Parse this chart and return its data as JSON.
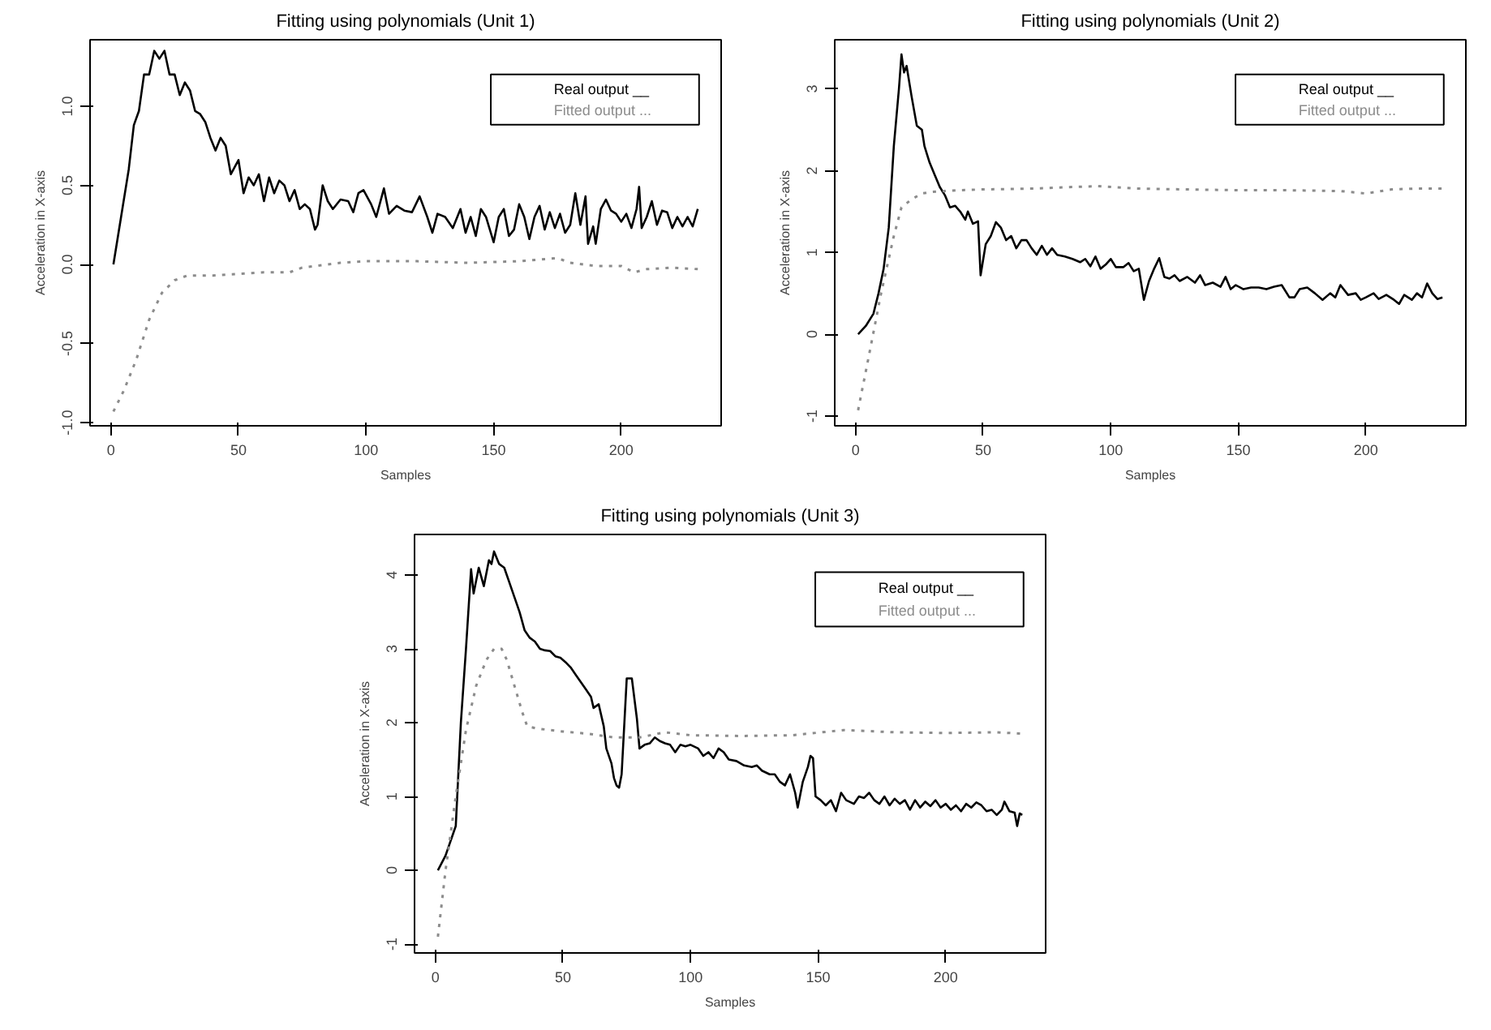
{
  "chart_data": [
    {
      "type": "line",
      "title": "Fitting using polynomials (Unit 1)",
      "xlabel": "Samples",
      "ylabel": "Acceleration in X-axis",
      "legend": "top right",
      "xlim": [
        -8.16,
        239.16
      ],
      "xticks": [
        0,
        50,
        100,
        150,
        200
      ],
      "ylim": [
        -1.02,
        1.42
      ],
      "yticks": [
        {
          "value": -1,
          "label": "-1.0"
        },
        -0.5,
        {
          "value": 0,
          "label": "0.0"
        },
        0.5,
        {
          "value": 1,
          "label": "1.0"
        }
      ],
      "series": [
        {
          "name": "Real output __",
          "color": "#000000",
          "line_style": "solid",
          "x": [
            1,
            4,
            7,
            9,
            11,
            13,
            15,
            17,
            19,
            21,
            23,
            25,
            27,
            29,
            31,
            33,
            35,
            37,
            39,
            41,
            43,
            45,
            47,
            50,
            52,
            54,
            56,
            58,
            60,
            62,
            64,
            66,
            68,
            70,
            72,
            74,
            76,
            78,
            80,
            81,
            83,
            85,
            87,
            90,
            93,
            95,
            97,
            99,
            102,
            104,
            107,
            109,
            112,
            115,
            118,
            121,
            124,
            126,
            128,
            131,
            134,
            137,
            139,
            141,
            143,
            145,
            147,
            150,
            152,
            154,
            156,
            158,
            160,
            162,
            164,
            166,
            168,
            170,
            172,
            174,
            176,
            178,
            180,
            182,
            184,
            186,
            187,
            189,
            190,
            192,
            194,
            196,
            198,
            200,
            202,
            204,
            206,
            207,
            208,
            210,
            212,
            214,
            216,
            218,
            220,
            222,
            224,
            226,
            228,
            230
          ],
          "values": [
            0,
            0.3,
            0.6,
            0.88,
            0.97,
            1.2,
            1.2,
            1.35,
            1.3,
            1.35,
            1.2,
            1.2,
            1.07,
            1.15,
            1.1,
            0.97,
            0.95,
            0.9,
            0.8,
            0.72,
            0.8,
            0.75,
            0.57,
            0.66,
            0.45,
            0.55,
            0.5,
            0.57,
            0.4,
            0.55,
            0.45,
            0.53,
            0.5,
            0.4,
            0.47,
            0.35,
            0.38,
            0.35,
            0.22,
            0.25,
            0.5,
            0.4,
            0.35,
            0.41,
            0.4,
            0.33,
            0.45,
            0.47,
            0.38,
            0.3,
            0.48,
            0.32,
            0.37,
            0.34,
            0.33,
            0.43,
            0.3,
            0.2,
            0.32,
            0.3,
            0.23,
            0.35,
            0.2,
            0.3,
            0.18,
            0.35,
            0.3,
            0.14,
            0.3,
            0.35,
            0.18,
            0.22,
            0.38,
            0.3,
            0.16,
            0.3,
            0.37,
            0.22,
            0.33,
            0.23,
            0.32,
            0.2,
            0.25,
            0.45,
            0.25,
            0.43,
            0.13,
            0.24,
            0.13,
            0.35,
            0.41,
            0.34,
            0.32,
            0.27,
            0.32,
            0.23,
            0.35,
            0.49,
            0.23,
            0.3,
            0.4,
            0.25,
            0.34,
            0.33,
            0.23,
            0.3,
            0.24,
            0.3,
            0.24,
            0.35
          ]
        },
        {
          "name": "Fitted output ...",
          "color": "#8c8c8c",
          "line_style": "dotted",
          "x": [
            1,
            5,
            10,
            15,
            20,
            25,
            30,
            40,
            50,
            60,
            70,
            75,
            80,
            90,
            100,
            120,
            140,
            160,
            175,
            180,
            190,
            200,
            205,
            210,
            220,
            230
          ],
          "values": [
            -0.93,
            -0.8,
            -0.6,
            -0.35,
            -0.18,
            -0.1,
            -0.07,
            -0.07,
            -0.06,
            -0.05,
            -0.05,
            -0.02,
            -0.01,
            0.01,
            0.02,
            0.02,
            0.01,
            0.02,
            0.04,
            0.01,
            -0.01,
            -0.01,
            -0.05,
            -0.03,
            -0.02,
            -0.03
          ]
        }
      ]
    },
    {
      "type": "line",
      "title": "Fitting using polynomials (Unit 2)",
      "xlabel": "Samples",
      "ylabel": "Acceleration in X-axis",
      "legend": "top right",
      "xlim": [
        -8.16,
        239.16
      ],
      "xticks": [
        0,
        50,
        100,
        150,
        200
      ],
      "ylim": [
        -1.12,
        3.6
      ],
      "yticks": [
        -1,
        0,
        1,
        2,
        3
      ],
      "series": [
        {
          "name": "Real output __",
          "color": "#000000",
          "line_style": "solid",
          "x": [
            1,
            4,
            7,
            9,
            11,
            13,
            15,
            17,
            18,
            19,
            20,
            22,
            24,
            26,
            27,
            29,
            31,
            33,
            35,
            37,
            39,
            41,
            43,
            44,
            46,
            48,
            49,
            51,
            53,
            55,
            57,
            59,
            61,
            63,
            65,
            67,
            69,
            71,
            73,
            75,
            77,
            79,
            82,
            85,
            88,
            90,
            92,
            94,
            96,
            98,
            100,
            102,
            105,
            107,
            109,
            111,
            113,
            115,
            117,
            119,
            121,
            123,
            125,
            127,
            130,
            133,
            135,
            137,
            140,
            143,
            145,
            147,
            149,
            152,
            155,
            158,
            161,
            164,
            167,
            170,
            172,
            174,
            177,
            180,
            183,
            186,
            188,
            190,
            193,
            196,
            198,
            200,
            203,
            205,
            208,
            211,
            213,
            215,
            218,
            220,
            222,
            224,
            226,
            228,
            230
          ],
          "values": [
            0,
            0.1,
            0.25,
            0.5,
            0.8,
            1.3,
            2.3,
            3.0,
            3.42,
            3.2,
            3.28,
            2.9,
            2.55,
            2.5,
            2.3,
            2.1,
            1.95,
            1.8,
            1.7,
            1.55,
            1.57,
            1.5,
            1.4,
            1.5,
            1.35,
            1.38,
            0.72,
            1.1,
            1.2,
            1.37,
            1.3,
            1.15,
            1.2,
            1.05,
            1.15,
            1.15,
            1.05,
            0.97,
            1.08,
            0.97,
            1.05,
            0.97,
            0.95,
            0.92,
            0.88,
            0.92,
            0.83,
            0.95,
            0.8,
            0.85,
            0.92,
            0.82,
            0.82,
            0.87,
            0.77,
            0.8,
            0.42,
            0.65,
            0.8,
            0.93,
            0.7,
            0.68,
            0.72,
            0.65,
            0.7,
            0.63,
            0.72,
            0.6,
            0.63,
            0.58,
            0.7,
            0.55,
            0.6,
            0.55,
            0.57,
            0.57,
            0.55,
            0.58,
            0.6,
            0.45,
            0.45,
            0.55,
            0.57,
            0.5,
            0.42,
            0.5,
            0.45,
            0.6,
            0.48,
            0.5,
            0.42,
            0.45,
            0.5,
            0.43,
            0.48,
            0.42,
            0.37,
            0.48,
            0.42,
            0.5,
            0.45,
            0.62,
            0.5,
            0.43,
            0.45
          ]
        },
        {
          "name": "Fitted output ...",
          "color": "#8c8c8c",
          "line_style": "dotted",
          "x": [
            1,
            5,
            10,
            15,
            18,
            22,
            26,
            30,
            40,
            50,
            70,
            85,
            95,
            110,
            130,
            150,
            170,
            190,
            200,
            210,
            220,
            230
          ],
          "values": [
            -0.93,
            -0.3,
            0.5,
            1.2,
            1.55,
            1.65,
            1.72,
            1.74,
            1.76,
            1.77,
            1.78,
            1.8,
            1.81,
            1.78,
            1.77,
            1.76,
            1.76,
            1.75,
            1.72,
            1.77,
            1.78,
            1.78
          ]
        }
      ]
    },
    {
      "type": "line",
      "title": "Fitting using polynomials (Unit 3)",
      "xlabel": "Samples",
      "ylabel": "Acceleration in X-axis",
      "legend": "top right",
      "xlim": [
        -8.16,
        239.16
      ],
      "xticks": [
        0,
        50,
        100,
        150,
        200
      ],
      "ylim": [
        -1.12,
        4.55
      ],
      "yticks": [
        -1,
        0,
        1,
        2,
        3,
        4
      ],
      "series": [
        {
          "name": "Real output __",
          "color": "#000000",
          "line_style": "solid",
          "x": [
            1,
            4,
            8,
            10,
            12,
            14,
            15,
            17,
            19,
            21,
            22,
            23,
            25,
            27,
            29,
            31,
            33,
            35,
            37,
            39,
            41,
            43,
            45,
            47,
            49,
            51,
            53,
            55,
            57,
            59,
            61,
            62,
            64,
            66,
            67,
            69,
            70,
            71,
            72,
            73,
            75,
            77,
            79,
            80,
            82,
            84,
            86,
            88,
            90,
            92,
            94,
            96,
            98,
            100,
            103,
            105,
            107,
            109,
            111,
            113,
            115,
            118,
            121,
            124,
            126,
            128,
            131,
            133,
            135,
            137,
            139,
            141,
            142,
            144,
            146,
            147,
            148,
            149,
            151,
            153,
            155,
            157,
            159,
            161,
            164,
            166,
            168,
            170,
            172,
            174,
            176,
            178,
            180,
            182,
            184,
            186,
            188,
            190,
            192,
            194,
            196,
            198,
            200,
            202,
            204,
            206,
            208,
            210,
            212,
            214,
            216,
            218,
            220,
            222,
            223,
            225,
            227,
            228,
            229,
            230
          ],
          "values": [
            0,
            0.2,
            0.6,
            2.0,
            3.0,
            4.08,
            3.75,
            4.1,
            3.85,
            4.2,
            4.15,
            4.32,
            4.15,
            4.1,
            3.9,
            3.7,
            3.5,
            3.25,
            3.15,
            3.1,
            3.0,
            2.98,
            2.97,
            2.9,
            2.88,
            2.82,
            2.75,
            2.65,
            2.55,
            2.45,
            2.35,
            2.2,
            2.25,
            1.95,
            1.65,
            1.45,
            1.25,
            1.15,
            1.12,
            1.3,
            2.6,
            2.6,
            2.05,
            1.65,
            1.7,
            1.72,
            1.8,
            1.75,
            1.72,
            1.7,
            1.6,
            1.7,
            1.68,
            1.7,
            1.65,
            1.55,
            1.6,
            1.52,
            1.65,
            1.6,
            1.5,
            1.48,
            1.42,
            1.4,
            1.42,
            1.35,
            1.3,
            1.3,
            1.2,
            1.15,
            1.3,
            1.05,
            0.85,
            1.2,
            1.4,
            1.55,
            1.52,
            1.0,
            0.95,
            0.88,
            0.95,
            0.8,
            1.05,
            0.95,
            0.9,
            1.0,
            0.98,
            1.05,
            0.95,
            0.9,
            1.0,
            0.88,
            0.97,
            0.9,
            0.95,
            0.82,
            0.95,
            0.85,
            0.93,
            0.87,
            0.95,
            0.85,
            0.9,
            0.82,
            0.88,
            0.8,
            0.9,
            0.85,
            0.92,
            0.88,
            0.8,
            0.82,
            0.75,
            0.82,
            0.93,
            0.8,
            0.78,
            0.6,
            0.77,
            0.75
          ]
        },
        {
          "name": "Fitted output ...",
          "color": "#8c8c8c",
          "line_style": "dotted",
          "x": [
            1,
            4,
            8,
            12,
            16,
            20,
            23,
            26,
            28,
            31,
            34,
            36,
            40,
            50,
            60,
            70,
            80,
            90,
            100,
            120,
            140,
            160,
            180,
            200,
            220,
            230
          ],
          "values": [
            -0.9,
            0.0,
            1.0,
            1.9,
            2.5,
            2.85,
            3.0,
            3.0,
            2.85,
            2.5,
            2.15,
            1.95,
            1.92,
            1.88,
            1.85,
            1.8,
            1.8,
            1.87,
            1.83,
            1.82,
            1.83,
            1.9,
            1.87,
            1.86,
            1.87,
            1.85
          ]
        }
      ]
    }
  ]
}
